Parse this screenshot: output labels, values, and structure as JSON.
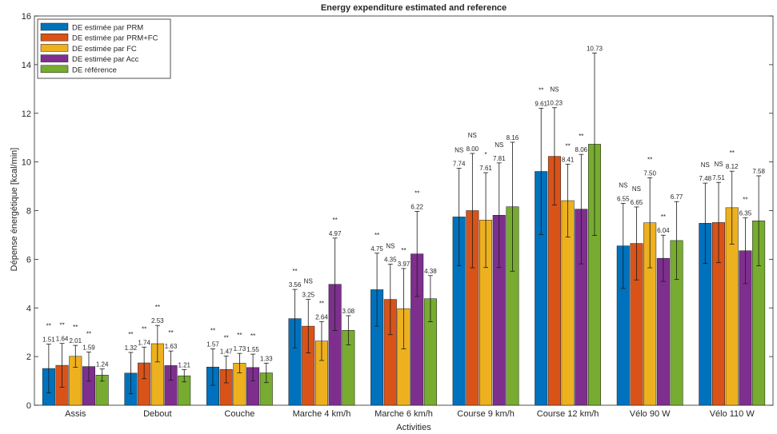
{
  "chart_data": {
    "type": "bar",
    "title": "Energy expenditure estimated and reference",
    "xlabel": "Activities",
    "ylabel": "Dépense énergétique [kcal/min]",
    "ylim": [
      0,
      16
    ],
    "yticks": [
      0,
      2,
      4,
      6,
      8,
      10,
      12,
      14,
      16
    ],
    "grid": false,
    "legend_position": "top-left",
    "categories": [
      "Assis",
      "Debout",
      "Couche",
      "Marche 4 km/h",
      "Marche 6 km/h",
      "Course 9 km/h",
      "Course 12 km/h",
      "Vélo 90 W",
      "Vélo 110 W"
    ],
    "series": [
      {
        "name": "DE estimée par PRM",
        "color": "#0072BD",
        "values": [
          1.51,
          1.32,
          1.57,
          3.56,
          4.75,
          7.74,
          9.61,
          6.55,
          7.48
        ],
        "labels": [
          "1.51",
          "1.32",
          "1.57",
          "3.56",
          "4.75",
          "7.74",
          "9.61",
          "6.55",
          "7.48"
        ],
        "error": [
          1.0,
          0.85,
          0.75,
          1.2,
          1.5,
          2.0,
          2.6,
          1.75,
          1.65
        ],
        "significance": [
          "**",
          "**",
          "**",
          "**",
          "**",
          "NS",
          "**",
          "NS",
          "NS"
        ]
      },
      {
        "name": "DE estimée par PRM+FC",
        "color": "#D95319",
        "values": [
          1.64,
          1.74,
          1.47,
          3.25,
          4.35,
          8.0,
          10.23,
          6.65,
          7.51
        ],
        "labels": [
          "1.64",
          "1.74",
          "1.47",
          "3.25",
          "4.35",
          "8.00",
          "10.23",
          "6.65",
          "7.51"
        ],
        "error": [
          0.9,
          0.65,
          0.55,
          1.1,
          1.45,
          2.35,
          2.0,
          1.5,
          1.65
        ],
        "significance": [
          "**",
          "**",
          "**",
          "NS",
          "NS",
          "NS",
          "NS",
          "NS",
          "NS"
        ]
      },
      {
        "name": "DE estimée par FC",
        "color": "#EDB120",
        "values": [
          2.01,
          2.53,
          1.73,
          2.64,
          3.97,
          7.61,
          8.41,
          7.5,
          8.12
        ],
        "labels": [
          "2.01",
          "2.53",
          "1.73",
          "2.64",
          "3.97",
          "7.61",
          "8.41",
          "7.50",
          "8.12"
        ],
        "error": [
          0.45,
          0.75,
          0.4,
          0.8,
          1.65,
          1.95,
          1.5,
          1.85,
          1.5
        ],
        "significance": [
          "**",
          "**",
          "**",
          "**",
          "**",
          "*",
          "**",
          "**",
          "**"
        ]
      },
      {
        "name": "DE estimée par Acc",
        "color": "#7E2F8E",
        "values": [
          1.59,
          1.63,
          1.55,
          4.97,
          6.22,
          7.81,
          8.06,
          6.04,
          6.35
        ],
        "labels": [
          "1.59",
          "1.63",
          "1.55",
          "4.97",
          "6.22",
          "7.81",
          "8.06",
          "6.04",
          "6.35"
        ],
        "error": [
          0.6,
          0.6,
          0.55,
          1.9,
          1.75,
          2.15,
          2.25,
          0.95,
          1.35
        ],
        "significance": [
          "**",
          "**",
          "**",
          "**",
          "**",
          "NS",
          "**",
          "**",
          "**"
        ]
      },
      {
        "name": "DE référence",
        "color": "#77AC30",
        "values": [
          1.24,
          1.21,
          1.33,
          3.08,
          4.38,
          8.16,
          10.73,
          6.77,
          7.58
        ],
        "labels": [
          "1.24",
          "1.21",
          "1.33",
          "3.08",
          "4.38",
          "8.16",
          "10.73",
          "6.77",
          "7.58"
        ],
        "error": [
          0.25,
          0.25,
          0.4,
          0.6,
          0.95,
          2.65,
          3.75,
          1.6,
          1.85
        ],
        "significance": [
          "",
          "",
          "",
          "",
          "",
          "",
          "",
          "",
          ""
        ]
      }
    ]
  }
}
